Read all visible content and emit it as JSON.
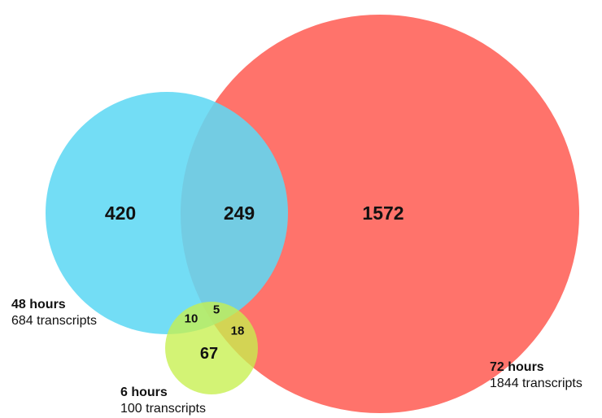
{
  "sets": {
    "h72": {
      "name": "72 hours",
      "size": "1844 transcripts",
      "color": "#ff675e"
    },
    "h48": {
      "name": "48 hours",
      "size": "684 transcripts",
      "color": "#60d8f4"
    },
    "h6": {
      "name": "6 hours",
      "size": "100 transcripts",
      "color": "#c6f04e"
    }
  },
  "regions": {
    "only48": "420",
    "h48_h72": "249",
    "only72": "1572",
    "h48_h6": "10",
    "all_three": "5",
    "h72_h6": "18",
    "only6": "67"
  }
}
